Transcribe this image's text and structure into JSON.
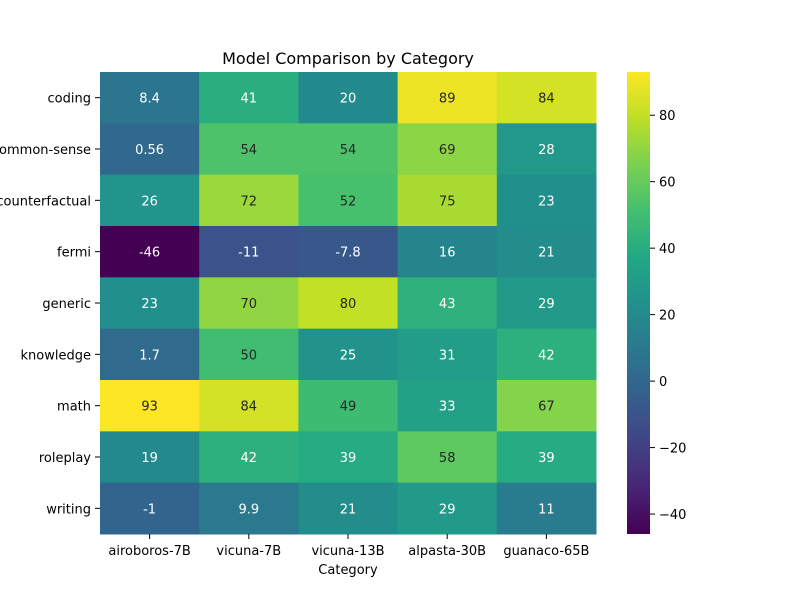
{
  "chart_data": {
    "type": "heatmap",
    "title": "Model Comparison by Category",
    "xlabel": "Category",
    "ylabel": "",
    "x_categories": [
      "airoboros-7B",
      "vicuna-7B",
      "vicuna-13B",
      "alpasta-30B",
      "guanaco-65B"
    ],
    "y_categories": [
      "coding",
      "common-sense",
      "counterfactual",
      "fermi",
      "generic",
      "knowledge",
      "math",
      "roleplay",
      "writing"
    ],
    "values": [
      [
        8.4,
        41,
        20,
        89,
        84
      ],
      [
        0.56,
        54,
        54,
        69,
        28
      ],
      [
        26,
        72,
        52,
        75,
        23
      ],
      [
        -46,
        -11,
        -7.8,
        16,
        21
      ],
      [
        23,
        70,
        80,
        43,
        29
      ],
      [
        1.7,
        50,
        25,
        31,
        42
      ],
      [
        93,
        84,
        49,
        33,
        67
      ],
      [
        19,
        42,
        39,
        58,
        39
      ],
      [
        -1,
        9.9,
        21,
        29,
        11
      ]
    ],
    "labels": [
      [
        "8.4",
        "41",
        "20",
        "89",
        "84"
      ],
      [
        "0.56",
        "54",
        "54",
        "69",
        "28"
      ],
      [
        "26",
        "72",
        "52",
        "75",
        "23"
      ],
      [
        "-46",
        "-11",
        "-7.8",
        "16",
        "21"
      ],
      [
        "23",
        "70",
        "80",
        "43",
        "29"
      ],
      [
        "1.7",
        "50",
        "25",
        "31",
        "42"
      ],
      [
        "93",
        "84",
        "49",
        "33",
        "67"
      ],
      [
        "19",
        "42",
        "39",
        "58",
        "39"
      ],
      [
        "-1",
        "9.9",
        "21",
        "29",
        "11"
      ]
    ],
    "colormap": "viridis",
    "colorbar": {
      "range": [
        -46,
        93
      ],
      "ticks": [
        -40,
        -20,
        0,
        20,
        40,
        60,
        80
      ],
      "tick_labels": [
        "−40",
        "−20",
        "0",
        "20",
        "40",
        "60",
        "80"
      ]
    }
  }
}
